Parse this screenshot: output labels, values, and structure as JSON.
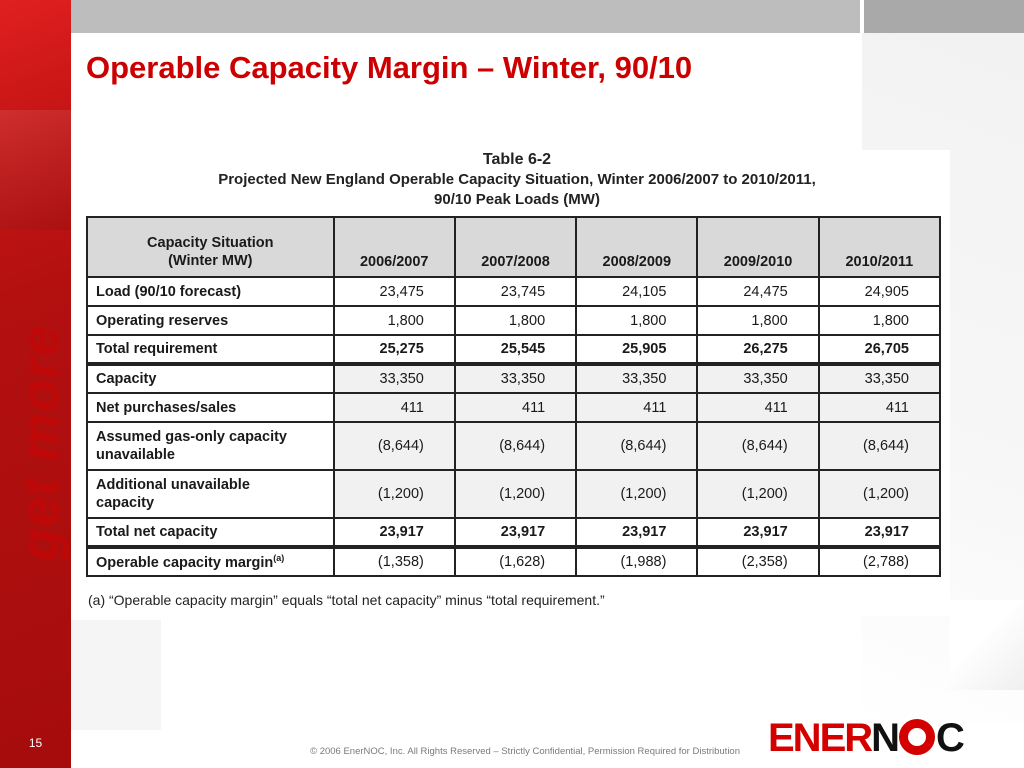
{
  "slide": {
    "title": "Operable Capacity Margin – Winter, 90/10",
    "page_number": "15",
    "tagline": "get more",
    "copyright": "© 2006 EnerNOC, Inc. All Rights Reserved – Strictly Confidential, Permission Required for Distribution",
    "logo": {
      "ener": "ENER",
      "n": "N",
      "c": "C"
    }
  },
  "table": {
    "caption_1": "Table 6-2",
    "caption_2": "Projected New England Operable Capacity Situation, Winter 2006/2007 to 2010/2011,",
    "caption_3": "90/10 Peak Loads (MW)",
    "header_first_1": "Capacity Situation",
    "header_first_2": "(Winter MW)",
    "years": [
      "2006/2007",
      "2007/2008",
      "2008/2009",
      "2009/2010",
      "2010/2011"
    ],
    "rows": [
      {
        "label": "Load (90/10 forecast)",
        "values": [
          "23,475",
          "23,745",
          "24,105",
          "24,475",
          "24,905"
        ]
      },
      {
        "label": "Operating reserves",
        "values": [
          "1,800",
          "1,800",
          "1,800",
          "1,800",
          "1,800"
        ]
      },
      {
        "label": "Total requirement",
        "values": [
          "25,275",
          "25,545",
          "25,905",
          "26,275",
          "26,705"
        ]
      },
      {
        "label": "Capacity",
        "values": [
          "33,350",
          "33,350",
          "33,350",
          "33,350",
          "33,350"
        ]
      },
      {
        "label": "Net purchases/sales",
        "values": [
          "411",
          "411",
          "411",
          "411",
          "411"
        ]
      },
      {
        "label_1": "Assumed gas-only capacity",
        "label_2": "unavailable",
        "values": [
          "(8,644)",
          "(8,644)",
          "(8,644)",
          "(8,644)",
          "(8,644)"
        ]
      },
      {
        "label_1": "Additional unavailable",
        "label_2": "capacity",
        "values": [
          "(1,200)",
          "(1,200)",
          "(1,200)",
          "(1,200)",
          "(1,200)"
        ]
      },
      {
        "label": "Total net capacity",
        "values": [
          "23,917",
          "23,917",
          "23,917",
          "23,917",
          "23,917"
        ]
      },
      {
        "label": "Operable capacity margin",
        "sup": "(a)",
        "values": [
          "(1,358)",
          "(1,628)",
          "(1,988)",
          "(2,358)",
          "(2,788)"
        ]
      }
    ],
    "footnote": "(a)  “Operable capacity margin” equals “total net capacity” minus “total requirement.”"
  },
  "colors": {
    "accent": "#cc0000",
    "band": "#b31010"
  }
}
